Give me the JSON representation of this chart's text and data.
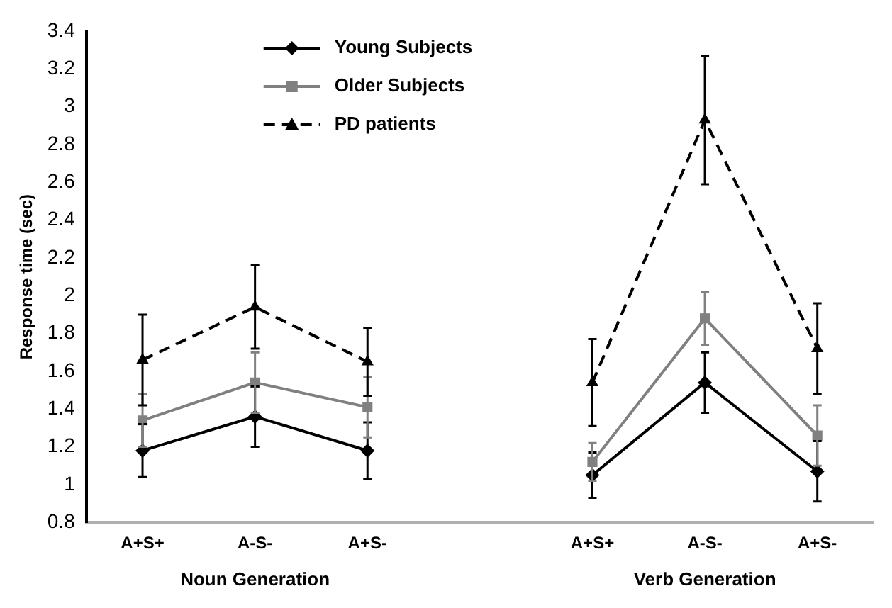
{
  "chart_data": {
    "type": "line",
    "ylabel": "Response time (sec)",
    "categories": [
      "A+S+",
      "A-S-",
      "A+S-",
      null,
      "A+S+",
      "A-S-",
      "A+S-"
    ],
    "series": [
      {
        "name": "Young Subjects",
        "color": "#000000",
        "marker": "diamond",
        "line_style": "solid",
        "values": [
          1.18,
          1.36,
          1.18,
          null,
          1.05,
          1.54,
          1.07
        ],
        "errors": [
          0.14,
          0.16,
          0.15,
          null,
          0.12,
          0.16,
          0.16
        ]
      },
      {
        "name": "Older Subjects",
        "color": "#808080",
        "marker": "square",
        "line_style": "solid",
        "values": [
          1.34,
          1.54,
          1.41,
          null,
          1.12,
          1.88,
          1.26
        ],
        "errors": [
          0.14,
          0.16,
          0.16,
          null,
          0.1,
          0.14,
          0.16
        ]
      },
      {
        "name": "PD patients",
        "color": "#000000",
        "marker": "triangle",
        "line_style": "dashed",
        "values": [
          1.66,
          1.94,
          1.65,
          null,
          1.54,
          2.93,
          1.72
        ],
        "errors": [
          0.24,
          0.22,
          0.18,
          null,
          0.23,
          0.34,
          0.24
        ]
      }
    ],
    "annotations": [
      "Noun Generation",
      "Verb Generation"
    ],
    "ylim": [
      0.8,
      3.4
    ],
    "yticks": [
      0.8,
      1,
      1.2,
      1.4,
      1.6,
      1.8,
      2,
      2.2,
      2.4,
      2.6,
      2.8,
      3,
      3.2,
      3.4
    ],
    "grid": false,
    "legend": "top left"
  }
}
